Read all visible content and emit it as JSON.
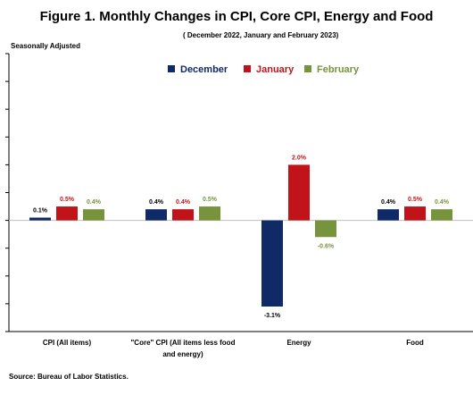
{
  "title": "Figure 1. Monthly Changes in CPI, Core CPI, Energy and Food",
  "subtitle": "( December 2022, January and February 2023)",
  "seasonal_note": "Seasonally Adjusted",
  "source": "Source: Bureau of Labor Statistics.",
  "colors": {
    "December": "#0f2a66",
    "January": "#c0141a",
    "February": "#77933c"
  },
  "chart_data": {
    "type": "bar",
    "categories": [
      [
        "CPI (All items)"
      ],
      [
        "\"Core\" CPI (All items less food",
        "and energy)"
      ],
      [
        "Energy"
      ],
      [
        "Food"
      ]
    ],
    "series": [
      {
        "name": "December",
        "values": [
          0.1,
          0.4,
          -3.1,
          0.4
        ],
        "labels": [
          "0.1%",
          "0.4%",
          "-3.1%",
          "0.4%"
        ]
      },
      {
        "name": "January",
        "values": [
          0.5,
          0.4,
          2.0,
          0.5
        ],
        "labels": [
          "0.5%",
          "0.4%",
          "2.0%",
          "0.5%"
        ]
      },
      {
        "name": "February",
        "values": [
          0.4,
          0.5,
          -0.6,
          0.4
        ],
        "labels": [
          "0.4%",
          "0.5%",
          "-0.6%",
          "0.4%"
        ]
      }
    ],
    "ylim": [
      -4.0,
      6.0
    ],
    "legend_position": "top-center",
    "grid": false
  }
}
